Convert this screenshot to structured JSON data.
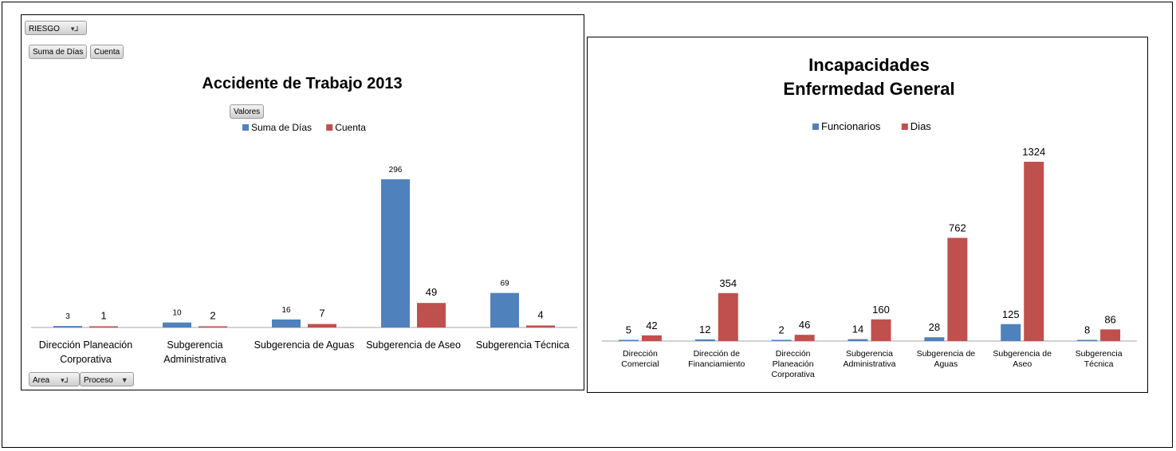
{
  "colors": {
    "blue": "#4f81bd",
    "red": "#c0504d",
    "axis": "#a6a6a6"
  },
  "pivot_controls": {
    "filter_label": "RIESGO",
    "value_fields": [
      "Suma de Días",
      "Cuenta"
    ],
    "valores_label": "Valores",
    "axis_fields": [
      "Area",
      "Proceso"
    ]
  },
  "chart_data": [
    {
      "type": "bar",
      "title": "Accidente de Trabajo 2013",
      "categories": [
        "Dirección Planeación Corporativa",
        "Subgerencia Administrativa",
        "Subgerencia de Aguas",
        "Subgerencia de Aseo",
        "Subgerencia Técnica"
      ],
      "series": [
        {
          "name": "Suma de Días",
          "values": [
            3,
            10,
            16,
            296,
            69
          ],
          "color": "#4f81bd"
        },
        {
          "name": "Cuenta",
          "values": [
            1,
            2,
            7,
            49,
            4
          ],
          "color": "#c0504d"
        }
      ],
      "legend": "top-center",
      "grid": false
    },
    {
      "type": "bar",
      "title": [
        "Incapacidades",
        "Enfermedad General"
      ],
      "categories": [
        "Dirección Comercial",
        "Dirección de Financiamiento",
        "Dirección Planeación Corporativa",
        "Subgerencia Administrativa",
        "Subgerencia de Aguas",
        "Subgerencia de Aseo",
        "Subgerencia Técnica"
      ],
      "series": [
        {
          "name": "Funcionarios",
          "values": [
            5,
            12,
            2,
            14,
            28,
            125,
            8
          ],
          "color": "#4f81bd"
        },
        {
          "name": "Dias",
          "values": [
            42,
            354,
            46,
            160,
            762,
            1324,
            86
          ],
          "color": "#c0504d"
        }
      ],
      "legend": "top-center",
      "grid": false
    }
  ]
}
